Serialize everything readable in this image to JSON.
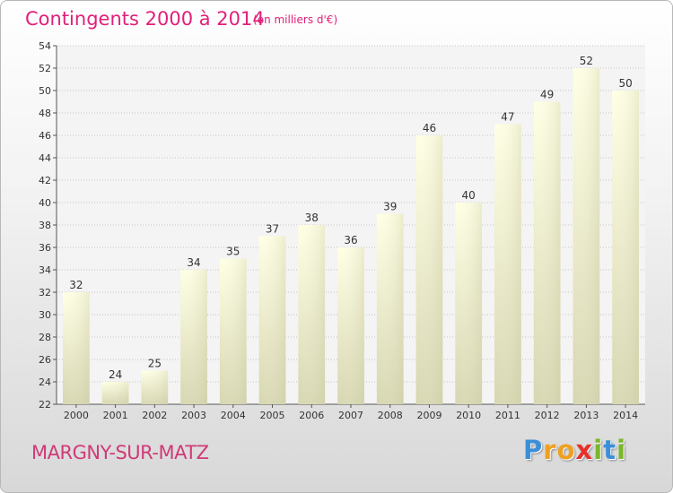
{
  "title": "Contingents 2000 à 2014",
  "subtitle": "(en milliers d'€)",
  "town": "MARGNY-SUR-MATZ",
  "logo": {
    "letters": [
      {
        "ch": "P",
        "color": "#3a8fd8"
      },
      {
        "ch": "r",
        "color": "#f0a020"
      },
      {
        "ch": "o",
        "color": "#f0a020"
      },
      {
        "ch": "x",
        "color": "#e8302a"
      },
      {
        "ch": "i",
        "color": "#7ab828"
      },
      {
        "ch": "t",
        "color": "#3a8fd8"
      },
      {
        "ch": "i",
        "color": "#7ab828"
      }
    ]
  },
  "colors": {
    "title": "#e0207a",
    "bar_top": "#ffffe4",
    "bar_bottom": "#d6d6b0",
    "plot_bg": "#f2f2f2"
  },
  "chart_data": {
    "type": "bar",
    "title": "Contingents 2000 à 2014",
    "subtitle": "(en milliers d'€)",
    "categories": [
      "2000",
      "2001",
      "2002",
      "2003",
      "2004",
      "2005",
      "2006",
      "2007",
      "2008",
      "2009",
      "2010",
      "2011",
      "2012",
      "2013",
      "2014"
    ],
    "values": [
      32,
      24,
      25,
      34,
      35,
      37,
      38,
      36,
      39,
      46,
      40,
      47,
      49,
      52,
      50
    ],
    "ylim": [
      22,
      54
    ],
    "yticks": [
      22,
      24,
      26,
      28,
      30,
      32,
      34,
      36,
      38,
      40,
      42,
      44,
      46,
      48,
      50,
      52,
      54
    ],
    "grid": true
  }
}
